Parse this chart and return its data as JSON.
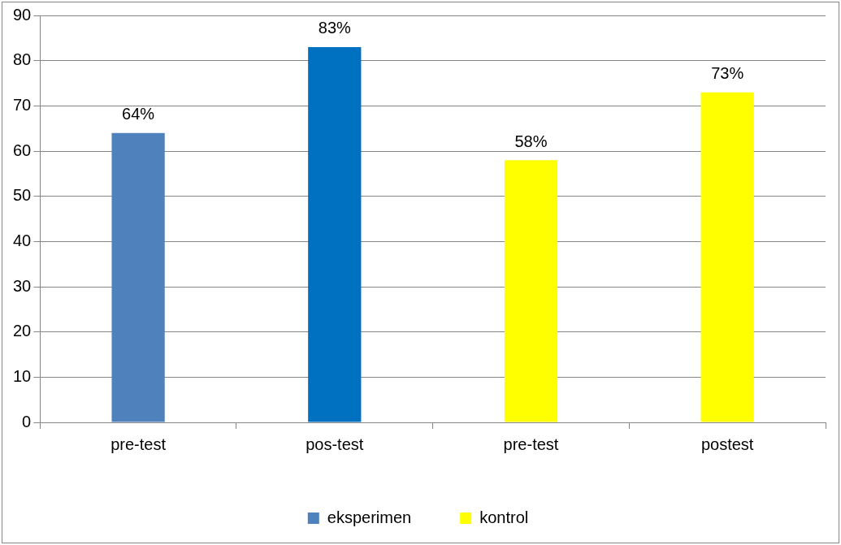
{
  "chart_data": {
    "type": "bar",
    "categories": [
      "pre-test",
      "pos-test",
      "pre-test",
      "postest"
    ],
    "series": [
      {
        "name": "eksperimen",
        "color": "#4f81bd",
        "colors": [
          "#4f81bd",
          "#0070c0",
          null,
          null
        ],
        "values": [
          64,
          83,
          null,
          null
        ],
        "value_labels": [
          "64%",
          "83%",
          null,
          null
        ]
      },
      {
        "name": "kontrol",
        "color": "#ffff00",
        "values": [
          null,
          null,
          58,
          73
        ],
        "value_labels": [
          null,
          null,
          "58%",
          "73%"
        ]
      }
    ],
    "ylim": [
      0,
      90
    ],
    "yticks": [
      0,
      10,
      20,
      30,
      40,
      50,
      60,
      70,
      80,
      90
    ],
    "grid": "y",
    "legend": "bottom"
  }
}
